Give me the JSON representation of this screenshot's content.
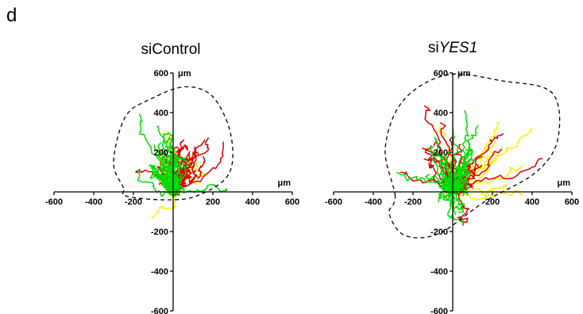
{
  "figure": {
    "panel_label": "d"
  },
  "chart_data": [
    {
      "type": "scatter",
      "title": "siControl",
      "title_prefix": "si",
      "title_italic": "",
      "title_suffix": "Control",
      "x_unit": "μm",
      "y_unit": "μm",
      "xlim": [
        -600,
        600
      ],
      "ylim": [
        -600,
        600
      ],
      "x_ticks": [
        -600,
        -400,
        -200,
        200,
        400,
        600
      ],
      "y_ticks": [
        600,
        400,
        200,
        -200,
        -400,
        -600
      ],
      "x_tick_labels": [
        "-600",
        "-400",
        "-200",
        "200",
        "400",
        "600"
      ],
      "y_tick_labels": [
        "600",
        "400",
        "200",
        "-200",
        "-400",
        "-600"
      ],
      "series_colors": {
        "green": "#00dd00",
        "red": "#dd0000",
        "yellow": "#ffee00"
      },
      "series": [
        {
          "color": "green",
          "count": 30,
          "mean_x": -45,
          "mean_y": 150,
          "spread_x": 70,
          "spread_y": 80,
          "seed": 11
        },
        {
          "color": "red",
          "count": 25,
          "mean_x": 40,
          "mean_y": 170,
          "spread_x": 80,
          "spread_y": 85,
          "seed": 29
        },
        {
          "color": "yellow",
          "count": 8,
          "mean_x": 60,
          "mean_y": 200,
          "spread_x": 100,
          "spread_y": 100,
          "seed": 47
        }
      ],
      "envelope": [
        [
          -250,
          20
        ],
        [
          -300,
          150
        ],
        [
          -240,
          380
        ],
        [
          -110,
          470
        ],
        [
          60,
          530
        ],
        [
          200,
          480
        ],
        [
          290,
          290
        ],
        [
          280,
          90
        ],
        [
          120,
          -20
        ],
        [
          -50,
          -40
        ],
        [
          -240,
          -20
        ]
      ]
    },
    {
      "type": "scatter",
      "title": "siYES1",
      "title_prefix": "si",
      "title_italic": "YES1",
      "title_suffix": "",
      "x_unit": "μm",
      "y_unit": "μm",
      "xlim": [
        -600,
        600
      ],
      "ylim": [
        -600,
        600
      ],
      "x_ticks": [
        -600,
        -400,
        -200,
        200,
        400,
        600
      ],
      "y_ticks": [
        600,
        400,
        200,
        -200,
        -400,
        -600
      ],
      "x_tick_labels": [
        "-600",
        "-400",
        "-200",
        "200",
        "400",
        "600"
      ],
      "y_tick_labels": [
        "600",
        "400",
        "200",
        "-200",
        "-400",
        "-600"
      ],
      "series_colors": {
        "green": "#00dd00",
        "red": "#dd0000",
        "yellow": "#ffee00"
      },
      "series": [
        {
          "color": "green",
          "count": 30,
          "mean_x": -20,
          "mean_y": 140,
          "spread_x": 90,
          "spread_y": 110,
          "seed": 83
        },
        {
          "color": "red",
          "count": 25,
          "mean_x": 60,
          "mean_y": 190,
          "spread_x": 130,
          "spread_y": 120,
          "seed": 101
        },
        {
          "color": "yellow",
          "count": 12,
          "mean_x": 120,
          "mean_y": 170,
          "spread_x": 170,
          "spread_y": 130,
          "seed": 131
        }
      ],
      "envelope": [
        [
          -290,
          -20
        ],
        [
          -340,
          220
        ],
        [
          -250,
          460
        ],
        [
          -30,
          590
        ],
        [
          250,
          560
        ],
        [
          500,
          500
        ],
        [
          530,
          270
        ],
        [
          420,
          100
        ],
        [
          160,
          -50
        ],
        [
          -70,
          -210
        ],
        [
          -240,
          -220
        ],
        [
          -320,
          -110
        ]
      ]
    }
  ]
}
